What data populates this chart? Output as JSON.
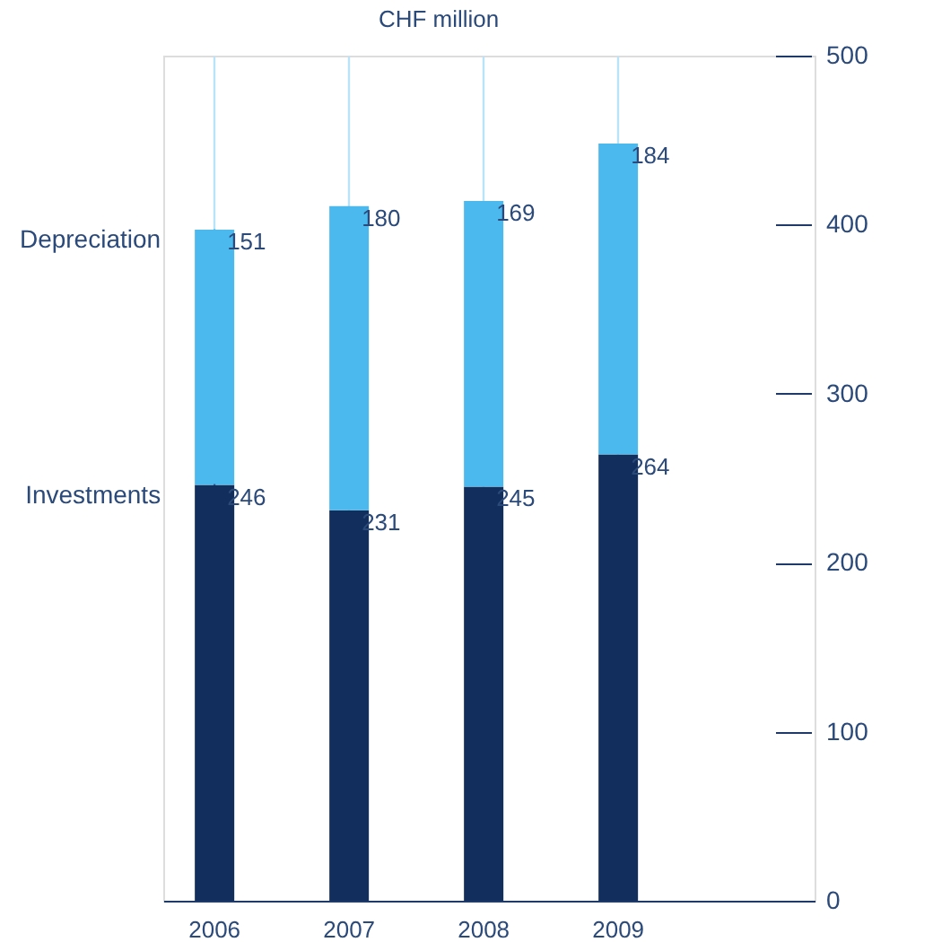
{
  "chart_data": {
    "type": "bar",
    "title": "CHF million",
    "stacked": true,
    "categories": [
      "2006",
      "2007",
      "2008",
      "2009"
    ],
    "series": [
      {
        "name": "Investments",
        "color": "#122e5c",
        "values": [
          246,
          231,
          245,
          264
        ]
      },
      {
        "name": "Depreciation",
        "color": "#4bb8ee",
        "values": [
          151,
          180,
          169,
          184
        ]
      }
    ],
    "ylim": [
      0,
      500
    ],
    "yticks": [
      0,
      100,
      200,
      300,
      400,
      500
    ],
    "data_labels": true,
    "grid": "x",
    "legend": "left"
  }
}
